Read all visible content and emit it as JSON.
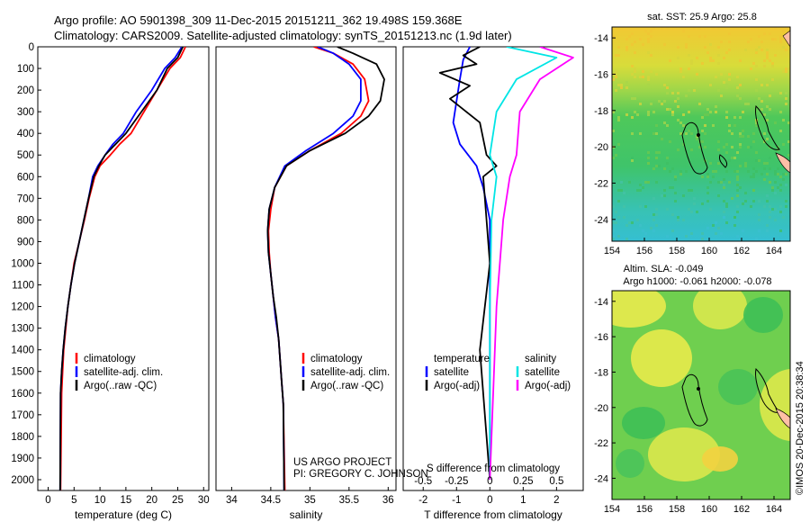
{
  "header": {
    "line1": "Argo profile: AO 5901398_309 11-Dec-2015 20151211_362 19.498S 159.368E",
    "line2": "Climatology: CARS2009. Satellite-adjusted climatology: synTS_20151213.nc (1.9d later)"
  },
  "colors": {
    "climatology": "#ff0000",
    "satellite": "#0000ff",
    "argo": "#000000",
    "sat_salinity": "#00e5e5",
    "argo_salinity": "#ff00ff"
  },
  "credits": {
    "project": "US ARGO PROJECT",
    "pi": "PI: GREGORY C. JOHNSON",
    "imos": "©IMOS 20-Dec-2015 20:38:34"
  },
  "chart_data": [
    {
      "type": "line",
      "panel": "temperature",
      "xlabel": "temperature (deg C)",
      "xlim": [
        -2,
        31
      ],
      "xticks": [
        "0",
        "5",
        "10",
        "15",
        "20",
        "25",
        "30"
      ],
      "ylim": [
        0,
        2050
      ],
      "yticks": [
        "0",
        "100",
        "200",
        "300",
        "400",
        "500",
        "600",
        "700",
        "800",
        "900",
        "1000",
        "1100",
        "1200",
        "1300",
        "1400",
        "1500",
        "1600",
        "1700",
        "1800",
        "1900",
        "2000"
      ],
      "legend": [
        "climatology",
        "satellite-adj. clim.",
        "Argo(..raw -QC)"
      ],
      "series": [
        {
          "name": "climatology",
          "x": [
            26.5,
            25.5,
            23.5,
            21.0,
            18.5,
            16.0,
            13.8,
            12.0,
            10.0,
            9.0,
            7.9,
            7.0,
            6.0,
            5.0,
            4.4,
            3.8,
            3.4,
            3.0,
            2.8,
            2.6,
            2.4
          ],
          "y": [
            0,
            50,
            100,
            200,
            300,
            400,
            450,
            500,
            550,
            600,
            700,
            800,
            900,
            1000,
            1100,
            1200,
            1300,
            1400,
            1500,
            1600,
            2050
          ]
        },
        {
          "name": "satellite-adj. clim.",
          "x": [
            25.8,
            24.5,
            22.5,
            20.0,
            17.0,
            14.5,
            12.5,
            11.0,
            9.6,
            8.6,
            7.8,
            6.9,
            6.0,
            5.1,
            4.4,
            3.8,
            3.3,
            2.9,
            2.6,
            2.4,
            2.3
          ],
          "y": [
            0,
            50,
            100,
            200,
            300,
            400,
            450,
            500,
            550,
            600,
            700,
            800,
            900,
            1000,
            1100,
            1200,
            1300,
            1400,
            1500,
            1600,
            2050
          ]
        },
        {
          "name": "Argo(..raw -QC)",
          "x": [
            26.0,
            25.0,
            23.0,
            21.0,
            18.0,
            15.0,
            13.0,
            11.0,
            9.8,
            8.8,
            7.8,
            6.9,
            6.0,
            5.1,
            4.4,
            3.8,
            3.3,
            2.9,
            2.6,
            2.4,
            2.3
          ],
          "y": [
            0,
            50,
            100,
            200,
            300,
            400,
            450,
            500,
            550,
            600,
            700,
            800,
            900,
            1000,
            1100,
            1200,
            1300,
            1400,
            1500,
            1600,
            2050
          ]
        }
      ]
    },
    {
      "type": "line",
      "panel": "salinity",
      "xlabel": "salinity",
      "xlim": [
        33.8,
        36.1
      ],
      "xticks": [
        "34",
        "34.5",
        "35",
        "35.5",
        "36"
      ],
      "ylim": [
        0,
        2050
      ],
      "legend": [
        "climatology",
        "satellite-adj. clim.",
        "Argo(..raw -QC)"
      ],
      "series": [
        {
          "name": "climatology",
          "x": [
            35.05,
            35.3,
            35.55,
            35.7,
            35.75,
            35.65,
            35.4,
            35.0,
            34.7,
            34.55,
            34.5,
            34.47,
            34.48,
            34.5,
            34.53,
            34.56,
            34.6,
            34.62,
            34.64,
            34.66,
            34.68
          ],
          "y": [
            0,
            30,
            80,
            150,
            250,
            320,
            400,
            480,
            550,
            650,
            750,
            850,
            950,
            1050,
            1150,
            1250,
            1350,
            1450,
            1550,
            1650,
            2050
          ]
        },
        {
          "name": "satellite-adj. clim.",
          "x": [
            35.1,
            35.3,
            35.5,
            35.65,
            35.65,
            35.55,
            35.3,
            34.95,
            34.68,
            34.55,
            34.48,
            34.46,
            34.47,
            34.5,
            34.53,
            34.56,
            34.6,
            34.62,
            34.64,
            34.66,
            34.67
          ],
          "y": [
            0,
            30,
            80,
            150,
            250,
            320,
            400,
            480,
            550,
            650,
            750,
            850,
            950,
            1050,
            1150,
            1250,
            1350,
            1450,
            1550,
            1650,
            2050
          ]
        },
        {
          "name": "Argo(..raw -QC)",
          "x": [
            35.35,
            35.55,
            35.85,
            35.95,
            35.9,
            35.75,
            35.45,
            35.0,
            34.7,
            34.55,
            34.48,
            34.46,
            34.47,
            34.5,
            34.53,
            34.57,
            34.6,
            34.62,
            34.64,
            34.66,
            34.67
          ],
          "y": [
            0,
            30,
            80,
            150,
            250,
            320,
            400,
            480,
            550,
            650,
            750,
            850,
            950,
            1050,
            1150,
            1250,
            1350,
            1450,
            1550,
            1650,
            2050
          ]
        }
      ]
    },
    {
      "type": "line",
      "panel": "differences",
      "xlabel": "T difference from climatology",
      "xlabel_top": "S difference from climatology",
      "xlim": [
        -2.6,
        2.8
      ],
      "xticks": [
        "-2",
        "-1",
        "0",
        "1",
        "2"
      ],
      "xticks_top": [
        "-0.5",
        "-0.25",
        "0",
        "0.25",
        "0.5"
      ],
      "ylim": [
        0,
        2050
      ],
      "legend_headers": [
        "temperature",
        "salinity"
      ],
      "legend": [
        "satellite",
        "Argo(-adj)",
        "satellite",
        "Argo(-adj)"
      ],
      "series": [
        {
          "name": "satellite",
          "x": [
            -0.6,
            -0.8,
            -0.9,
            -1.0,
            -1.1,
            -0.9,
            -0.4,
            -0.2,
            0.0,
            0.0,
            0.0,
            0.0,
            0.0
          ],
          "y": [
            0,
            60,
            150,
            250,
            350,
            450,
            550,
            650,
            800,
            1000,
            1400,
            1800,
            2000
          ]
        },
        {
          "name": "Argo(-adj)",
          "x": [
            -0.3,
            -0.8,
            -0.4,
            -1.5,
            -0.6,
            -1.2,
            -0.3,
            -0.1,
            0.2,
            -0.2,
            0.0,
            -0.3,
            -0.1,
            0.0
          ],
          "y": [
            0,
            40,
            80,
            120,
            180,
            240,
            350,
            500,
            550,
            600,
            1000,
            1400,
            1800,
            2000
          ]
        },
        {
          "name": "satellite",
          "x": [
            0.5,
            2.0,
            0.8,
            0.2,
            0.0,
            0.2,
            0.05,
            0.0,
            0.0
          ],
          "y": [
            0,
            50,
            150,
            300,
            500,
            600,
            800,
            1200,
            2000
          ]
        },
        {
          "name": "Argo(-adj)",
          "x": [
            1.5,
            2.5,
            1.5,
            0.9,
            0.8,
            0.6,
            0.4,
            0.2,
            0.0
          ],
          "y": [
            0,
            50,
            150,
            300,
            500,
            600,
            800,
            1200,
            2000
          ]
        }
      ]
    },
    {
      "type": "heatmap",
      "panel": "sst-map",
      "title": "sat. SST: 25.9  Argo: 25.8",
      "xlim": [
        154,
        165
      ],
      "ylim": [
        -25.2,
        -13.4
      ],
      "xticks": [
        "154",
        "156",
        "158",
        "160",
        "162",
        "164"
      ],
      "yticks": [
        "-14",
        "-16",
        "-18",
        "-20",
        "-22",
        "-24"
      ],
      "argo_location": [
        159.368,
        -19.498
      ]
    },
    {
      "type": "heatmap",
      "panel": "sla-map",
      "title": "Altim. SLA: -0.049",
      "subtitle": "Argo h1000: -0.061  h2000: -0.078",
      "xlim": [
        154,
        165
      ],
      "ylim": [
        -25.2,
        -13.4
      ],
      "xticks": [
        "154",
        "156",
        "158",
        "160",
        "162",
        "164"
      ],
      "yticks": [
        "-14",
        "-16",
        "-18",
        "-20",
        "-22",
        "-24"
      ],
      "argo_location": [
        159.368,
        -19.498
      ]
    }
  ]
}
